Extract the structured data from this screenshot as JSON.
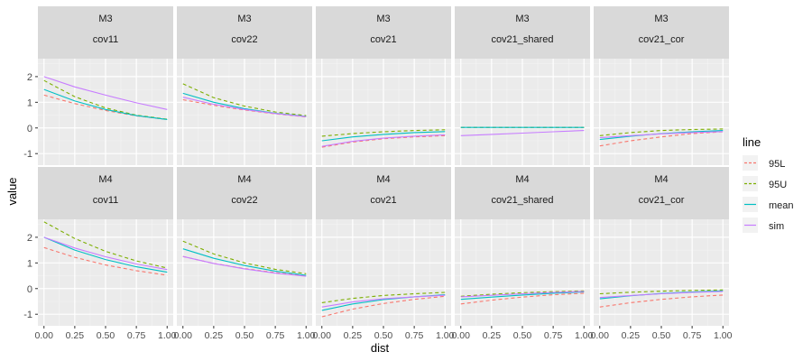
{
  "chart_data": {
    "type": "line",
    "xlabel": "dist",
    "ylabel": "value",
    "xlim": [
      0,
      1
    ],
    "ylim": [
      -1.45,
      2.7
    ],
    "x_ticks": [
      0,
      0.25,
      0.5,
      0.75,
      1
    ],
    "x_tick_labels": [
      "0.00",
      "0.25",
      "0.50",
      "0.75",
      "1.00"
    ],
    "y_ticks": [
      -1,
      0,
      1,
      2
    ],
    "y_tick_labels": [
      "-1",
      "0",
      "1",
      "2"
    ],
    "grid": true,
    "legend": {
      "title": "line",
      "placement": "right",
      "items": [
        {
          "key": "95L",
          "label": "95L",
          "color": "#F8766D",
          "dashed": true
        },
        {
          "key": "95U",
          "label": "95U",
          "color": "#7CAE00",
          "dashed": true
        },
        {
          "key": "mean",
          "label": "mean",
          "color": "#00BFC4",
          "dashed": false
        },
        {
          "key": "sim",
          "label": "sim",
          "color": "#C77CFF",
          "dashed": false
        }
      ]
    },
    "x": [
      0,
      0.25,
      0.5,
      0.75,
      1
    ],
    "rows": [
      {
        "label": "M3",
        "panels": [
          {
            "label": "cov11",
            "series": {
              "95L": [
                1.28,
                0.95,
                0.68,
                0.47,
                0.33
              ],
              "95U": [
                1.85,
                1.22,
                0.78,
                0.5,
                0.34
              ],
              "mean": [
                1.5,
                1.05,
                0.72,
                0.48,
                0.33
              ],
              "sim": [
                2.0,
                1.6,
                1.28,
                0.98,
                0.72
              ]
            }
          },
          {
            "label": "cov22",
            "series": {
              "95L": [
                1.1,
                0.88,
                0.7,
                0.55,
                0.43
              ],
              "95U": [
                1.72,
                1.18,
                0.85,
                0.62,
                0.48
              ],
              "mean": [
                1.35,
                1.0,
                0.75,
                0.57,
                0.45
              ],
              "sim": [
                1.2,
                0.92,
                0.72,
                0.56,
                0.44
              ]
            }
          },
          {
            "label": "cov21",
            "series": {
              "95L": [
                -0.75,
                -0.55,
                -0.42,
                -0.35,
                -0.3
              ],
              "95U": [
                -0.32,
                -0.22,
                -0.15,
                -0.1,
                -0.07
              ],
              "mean": [
                -0.5,
                -0.35,
                -0.25,
                -0.18,
                -0.14
              ],
              "sim": [
                -0.72,
                -0.52,
                -0.4,
                -0.32,
                -0.27
              ]
            }
          },
          {
            "label": "cov21_shared",
            "series": {
              "95L": [
                0.02,
                0.02,
                0.02,
                0.02,
                0.02
              ],
              "95U": [
                0.02,
                0.02,
                0.02,
                0.02,
                0.02
              ],
              "mean": [
                0.02,
                0.02,
                0.02,
                0.02,
                0.02
              ],
              "sim": [
                -0.3,
                -0.25,
                -0.2,
                -0.15,
                -0.1
              ]
            }
          },
          {
            "label": "cov21_cor",
            "series": {
              "95L": [
                -0.7,
                -0.5,
                -0.35,
                -0.22,
                -0.15
              ],
              "95U": [
                -0.3,
                -0.18,
                -0.1,
                -0.06,
                -0.04
              ],
              "mean": [
                -0.45,
                -0.32,
                -0.22,
                -0.15,
                -0.1
              ],
              "sim": [
                -0.38,
                -0.3,
                -0.23,
                -0.18,
                -0.14
              ]
            }
          }
        ]
      },
      {
        "label": "M4",
        "panels": [
          {
            "label": "cov11",
            "series": {
              "95L": [
                1.6,
                1.22,
                0.92,
                0.7,
                0.52
              ],
              "95U": [
                2.6,
                1.95,
                1.45,
                1.08,
                0.8
              ],
              "mean": [
                2.0,
                1.5,
                1.13,
                0.85,
                0.64
              ],
              "sim": [
                2.0,
                1.58,
                1.24,
                0.96,
                0.74
              ]
            }
          },
          {
            "label": "cov22",
            "series": {
              "95L": [
                1.25,
                0.98,
                0.78,
                0.62,
                0.5
              ],
              "95U": [
                1.85,
                1.35,
                1.0,
                0.75,
                0.58
              ],
              "mean": [
                1.55,
                1.18,
                0.9,
                0.68,
                0.52
              ],
              "sim": [
                1.25,
                0.98,
                0.77,
                0.6,
                0.48
              ]
            }
          },
          {
            "label": "cov21",
            "series": {
              "95L": [
                -1.1,
                -0.8,
                -0.58,
                -0.42,
                -0.3
              ],
              "95U": [
                -0.55,
                -0.38,
                -0.27,
                -0.2,
                -0.15
              ],
              "mean": [
                -0.85,
                -0.6,
                -0.43,
                -0.32,
                -0.24
              ],
              "sim": [
                -0.72,
                -0.52,
                -0.4,
                -0.32,
                -0.26
              ]
            }
          },
          {
            "label": "cov21_shared",
            "series": {
              "95L": [
                -0.6,
                -0.45,
                -0.33,
                -0.24,
                -0.18
              ],
              "95U": [
                -0.3,
                -0.22,
                -0.16,
                -0.12,
                -0.09
              ],
              "mean": [
                -0.42,
                -0.33,
                -0.25,
                -0.18,
                -0.13
              ],
              "sim": [
                -0.32,
                -0.26,
                -0.2,
                -0.15,
                -0.11
              ]
            }
          },
          {
            "label": "cov21_cor",
            "series": {
              "95L": [
                -0.72,
                -0.55,
                -0.42,
                -0.32,
                -0.25
              ],
              "95U": [
                -0.2,
                -0.14,
                -0.1,
                -0.07,
                -0.05
              ],
              "mean": [
                -0.4,
                -0.28,
                -0.19,
                -0.13,
                -0.09
              ],
              "sim": [
                -0.35,
                -0.27,
                -0.2,
                -0.15,
                -0.11
              ]
            }
          }
        ]
      }
    ]
  }
}
